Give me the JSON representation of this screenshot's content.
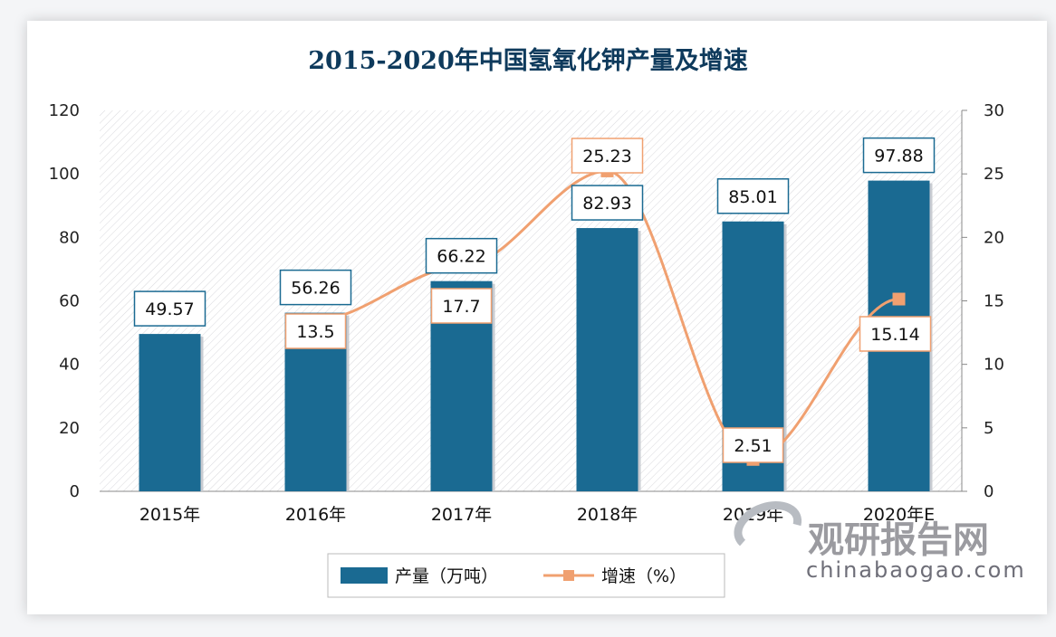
{
  "chart_data": {
    "type": "bar+line",
    "title": "2015-2020年中国氢氧化钾产量及增速",
    "categories": [
      "2015年",
      "2016年",
      "2017年",
      "2018年",
      "2019年",
      "2020年E"
    ],
    "series": [
      {
        "name": "产量（万吨）",
        "type": "bar",
        "axis": "left",
        "values": [
          49.57,
          56.26,
          66.22,
          82.93,
          85.01,
          97.88
        ],
        "color": "#1a6a92"
      },
      {
        "name": "增速（%）",
        "type": "line",
        "axis": "right",
        "values": [
          null,
          13.5,
          17.7,
          25.23,
          2.51,
          15.14
        ],
        "color": "#f0a070"
      }
    ],
    "y_left": {
      "range": [
        0,
        120
      ],
      "ticks": [
        0,
        20,
        40,
        60,
        80,
        100,
        120
      ]
    },
    "y_right": {
      "range": [
        0,
        30
      ],
      "ticks": [
        0,
        5,
        10,
        15,
        20,
        25,
        30
      ]
    },
    "legend": "bottom",
    "grid": false
  },
  "watermark": {
    "name": "观研报告网",
    "url": "chinabaogao.com"
  }
}
